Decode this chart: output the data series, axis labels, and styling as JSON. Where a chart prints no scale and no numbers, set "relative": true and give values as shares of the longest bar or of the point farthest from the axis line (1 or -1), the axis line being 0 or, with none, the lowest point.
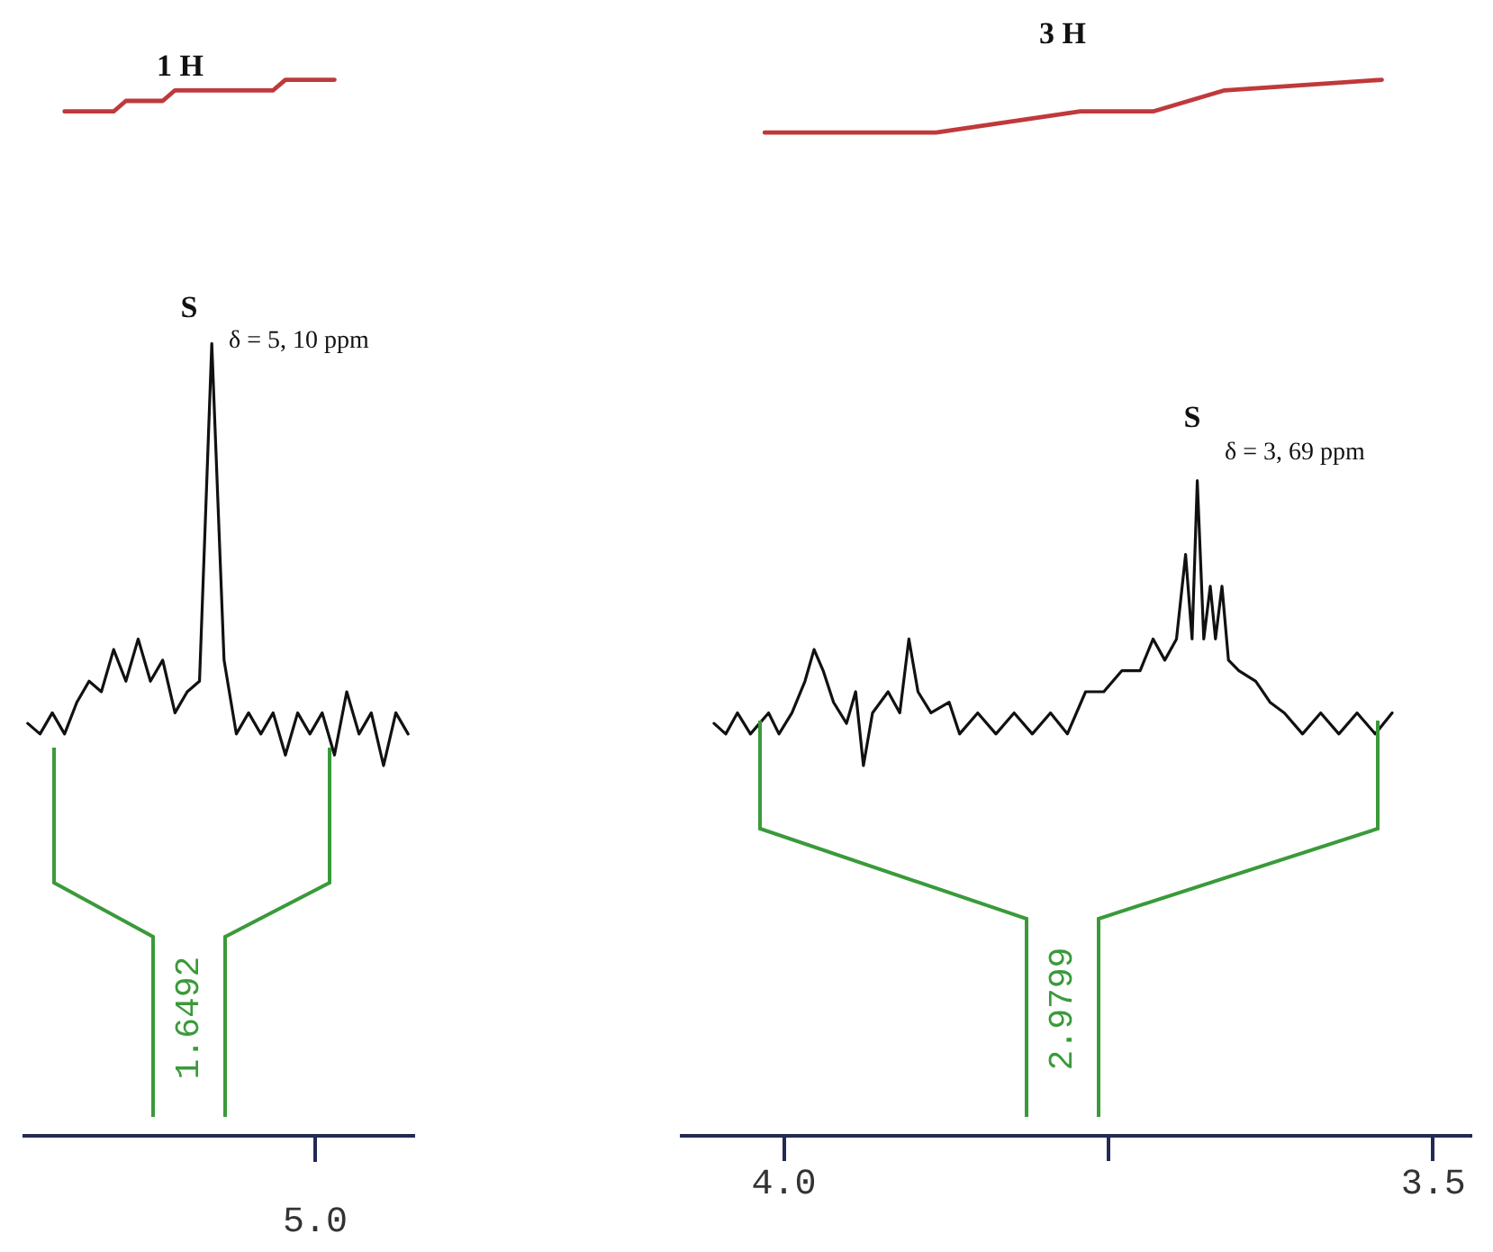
{
  "chart_data": [
    {
      "type": "line",
      "relative": true,
      "categories": [
        null,
        null,
        null,
        null,
        null,
        null,
        null,
        null,
        null,
        null,
        null,
        null,
        null,
        null,
        null,
        null,
        null,
        null,
        null,
        null,
        null,
        null,
        null,
        null,
        null,
        null,
        null,
        null,
        null,
        null,
        null,
        null
      ],
      "series": [
        {
          "color": "#111111",
          "values": [
            0.39,
            0.38,
            0.4,
            0.38,
            0.41,
            0.43,
            0.42,
            0.46,
            0.43,
            0.47,
            0.43,
            0.45,
            0.4,
            0.42,
            0.43,
            0.75,
            0.45,
            0.38,
            0.4,
            0.38,
            0.4,
            0.36,
            0.4,
            0.38,
            0.4,
            0.36,
            0.42,
            0.38,
            0.4,
            0.35,
            0.4,
            0.38
          ]
        },
        {
          "type": "line",
          "color": "#c0393b",
          "values": [
            null,
            null,
            null,
            0.97,
            0.97,
            0.97,
            0.97,
            0.97,
            0.98,
            0.98,
            0.98,
            0.98,
            0.99,
            0.99,
            0.99,
            0.99,
            0.99,
            0.99,
            0.99,
            0.99,
            0.99,
            1,
            1,
            1,
            1,
            1,
            null,
            null,
            null,
            null,
            null,
            null
          ]
        }
      ],
      "annotations": [
        "1 H",
        "S",
        "δ = 5, 10 ppm",
        "1.6492",
        "5.0"
      ]
    },
    {
      "type": "line",
      "relative": true,
      "xlim": [
        4.08,
        3.47
      ],
      "xticks": [
        {
          "value": 4,
          "label": "4.0"
        },
        {
          "value": 3.75,
          "label": null
        },
        3.5
      ],
      "series": [
        {
          "color": "#111111",
          "x": [
            4.053,
            4.044,
            4.035,
            4.025,
            4.011,
            4.003,
            3.993,
            3.983,
            3.976,
            3.969,
            3.961,
            3.951,
            3.944,
            3.938,
            3.931,
            3.919,
            3.91,
            3.903,
            3.896,
            3.886,
            3.872,
            3.864,
            3.85,
            3.836,
            3.822,
            3.808,
            3.794,
            3.781,
            3.767,
            3.753,
            3.739,
            3.725,
            3.715,
            3.706,
            3.697,
            3.69,
            3.685,
            3.681,
            3.676,
            3.671,
            3.667,
            3.662,
            3.657,
            3.649,
            3.636,
            3.625,
            3.614,
            3.6,
            3.586,
            3.572,
            3.558,
            3.544,
            3.531
          ],
          "values": [
            0.39,
            0.38,
            0.4,
            0.38,
            0.4,
            0.38,
            0.4,
            0.43,
            0.46,
            0.44,
            0.41,
            0.39,
            0.42,
            0.35,
            0.4,
            0.42,
            0.4,
            0.47,
            0.42,
            0.4,
            0.41,
            0.38,
            0.4,
            0.38,
            0.4,
            0.38,
            0.4,
            0.38,
            0.42,
            0.42,
            0.44,
            0.44,
            0.47,
            0.45,
            0.47,
            0.55,
            0.47,
            0.62,
            0.47,
            0.52,
            0.47,
            0.52,
            0.45,
            0.44,
            0.43,
            0.41,
            0.4,
            0.38,
            0.4,
            0.38,
            0.4,
            0.38,
            0.4
          ]
        },
        {
          "type": "line",
          "color": "#c0393b",
          "x": [
            4.014,
            3.882,
            3.771,
            3.715,
            3.66,
            3.539
          ],
          "values": [
            0.95,
            0.95,
            0.97,
            0.97,
            0.99,
            1
          ]
        }
      ],
      "annotations": [
        "3 H",
        "S",
        "δ = 3, 69 ppm",
        "2.9799"
      ]
    }
  ]
}
